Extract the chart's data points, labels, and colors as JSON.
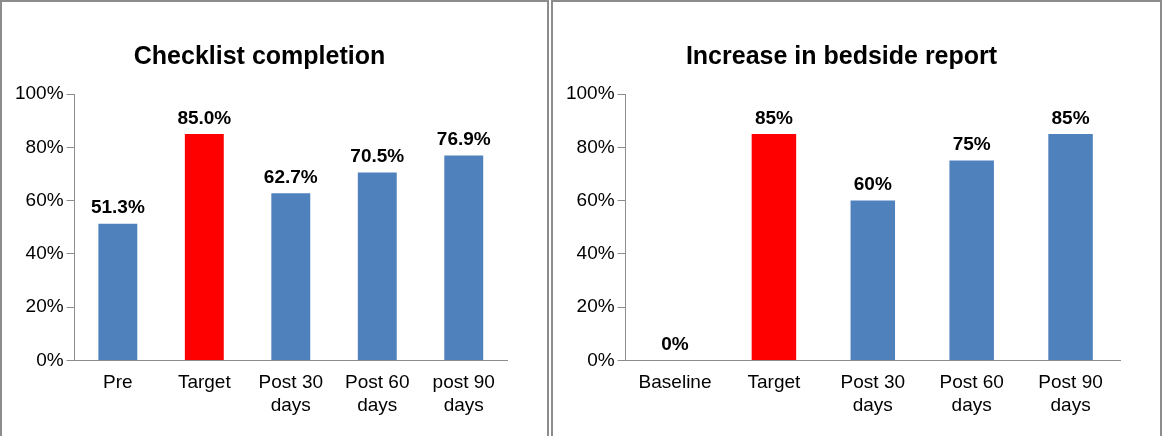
{
  "chart_data": [
    {
      "type": "bar",
      "title": "Checklist completion",
      "categories": [
        "Pre",
        "Target",
        "Post 30 days",
        "Post 60 days",
        "post 90 days"
      ],
      "values": [
        51.3,
        85.0,
        62.7,
        70.5,
        76.9
      ],
      "colors": [
        "#4f81bd",
        "#ff0000",
        "#4f81bd",
        "#4f81bd",
        "#4f81bd"
      ],
      "value_labels": [
        "51.3%",
        "85.0%",
        "62.7%",
        "70.5%",
        "76.9%"
      ],
      "ylim": [
        0,
        100
      ],
      "yticks": [
        {
          "value": 0,
          "label": "0%"
        },
        {
          "value": 20,
          "label": "20%"
        },
        {
          "value": 40,
          "label": "40%"
        },
        {
          "value": 60,
          "label": "60%"
        },
        {
          "value": 80,
          "label": "80%"
        },
        {
          "value": 100,
          "label": "100%"
        }
      ],
      "grid": false,
      "legend": false
    },
    {
      "type": "bar",
      "title": "Increase in bedside report",
      "categories": [
        "Baseline",
        "Target",
        "Post 30 days",
        "Post 60 days",
        "Post 90 days"
      ],
      "values": [
        0,
        85,
        60,
        75,
        85
      ],
      "colors": [
        "#4f81bd",
        "#ff0000",
        "#4f81bd",
        "#4f81bd",
        "#4f81bd"
      ],
      "value_labels": [
        "0%",
        "85%",
        "60%",
        "75%",
        "85%"
      ],
      "ylim": [
        0,
        100
      ],
      "yticks": [
        {
          "value": 0,
          "label": "0%"
        },
        {
          "value": 20,
          "label": "20%"
        },
        {
          "value": 40,
          "label": "40%"
        },
        {
          "value": 60,
          "label": "60%"
        },
        {
          "value": 80,
          "label": "80%"
        },
        {
          "value": 100,
          "label": "100%"
        }
      ],
      "grid": false,
      "legend": false
    }
  ]
}
